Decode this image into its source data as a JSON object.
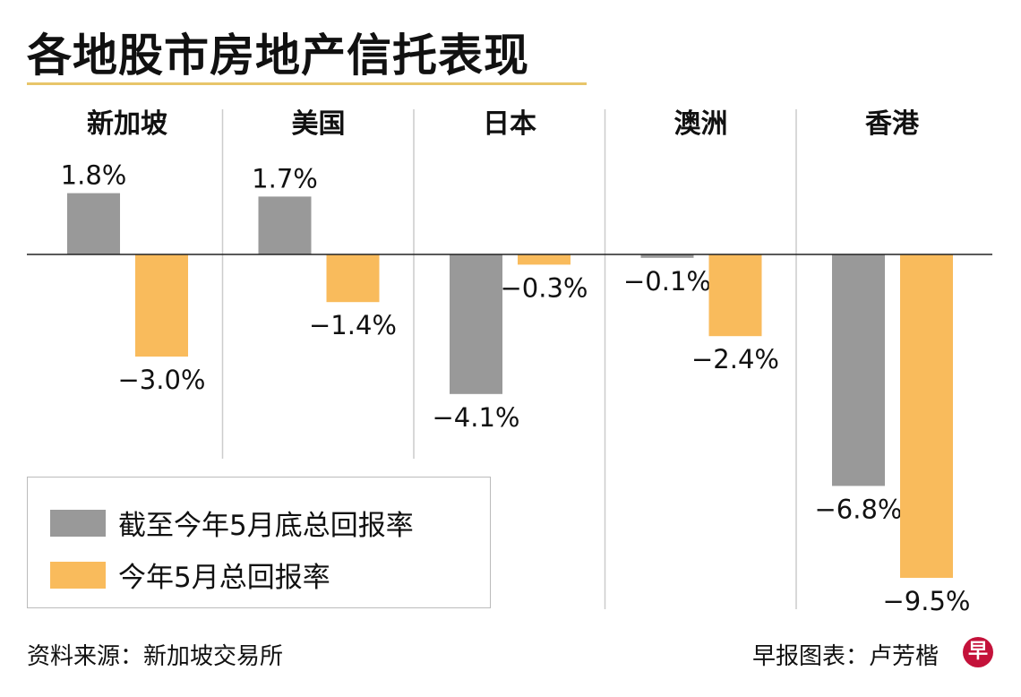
{
  "title": "各地股市房地产信托表现",
  "source": "资料来源：新加坡交易所",
  "credit": "早报图表：卢芳楷",
  "logo_text": "早",
  "colors": {
    "ytd": "#999999",
    "may": "#f9bb5c",
    "accent": "#e8c56a",
    "logo": "#c4123a"
  },
  "chart_data": {
    "type": "bar",
    "categories": [
      "新加坡",
      "美国",
      "日本",
      "澳洲",
      "香港"
    ],
    "series": [
      {
        "name": "截至今年5月底总回报率",
        "values": [
          1.8,
          1.7,
          -4.1,
          -0.1,
          -6.8
        ],
        "labels": [
          "1.8%",
          "1.7%",
          "−4.1%",
          "−0.1%",
          "−6.8%"
        ]
      },
      {
        "name": "今年5月总回报率",
        "values": [
          -3.0,
          -1.4,
          -0.3,
          -2.4,
          -9.5
        ],
        "labels": [
          "−3.0%",
          "−1.4%",
          "−0.3%",
          "−2.4%",
          "−9.5%"
        ]
      }
    ],
    "legend_position": "bottom-left",
    "grid": false,
    "unit": "%"
  }
}
